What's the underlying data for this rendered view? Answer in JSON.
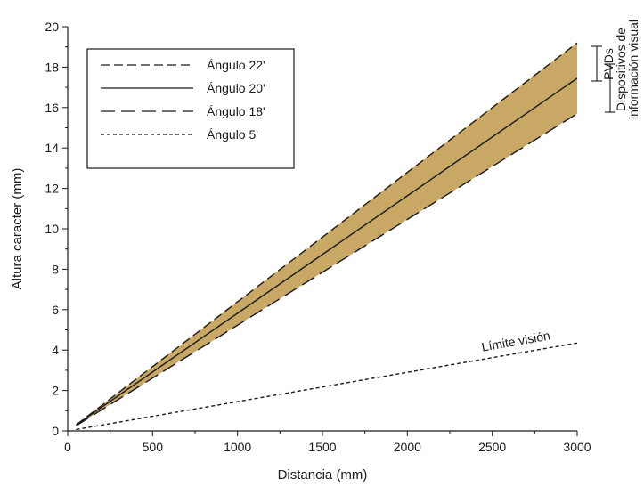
{
  "chart_data": {
    "type": "line",
    "xlabel": "Distancia (mm)",
    "ylabel": "Altura caracter (mm)",
    "xlim": [
      0,
      3000
    ],
    "ylim": [
      0,
      20
    ],
    "xticks": [
      0,
      500,
      1000,
      1500,
      2000,
      2500,
      3000
    ],
    "yticks": [
      0,
      2,
      4,
      6,
      8,
      10,
      12,
      14,
      16,
      18,
      20
    ],
    "grid": false,
    "legend_position": "top-left",
    "band_color": "#c8a864",
    "series": [
      {
        "name": "Ángulo 22'",
        "dash": "long-dash",
        "x": [
          50,
          3000
        ],
        "y": [
          0.3,
          19.2
        ]
      },
      {
        "name": "Ángulo 20'",
        "dash": "solid",
        "x": [
          50,
          3000
        ],
        "y": [
          0.3,
          17.45
        ]
      },
      {
        "name": "Ángulo 18'",
        "dash": "extra-long-dash",
        "x": [
          50,
          3000
        ],
        "y": [
          0.26,
          15.7
        ]
      },
      {
        "name": "Ángulo 5'",
        "dash": "short-dash",
        "x": [
          50,
          3000
        ],
        "y": [
          0.07,
          4.35
        ]
      }
    ],
    "annotations": {
      "limit": "Límite visión",
      "pvds": "PVDs",
      "devices_line1": "Dispositivos de",
      "devices_line2": "información visual"
    }
  }
}
